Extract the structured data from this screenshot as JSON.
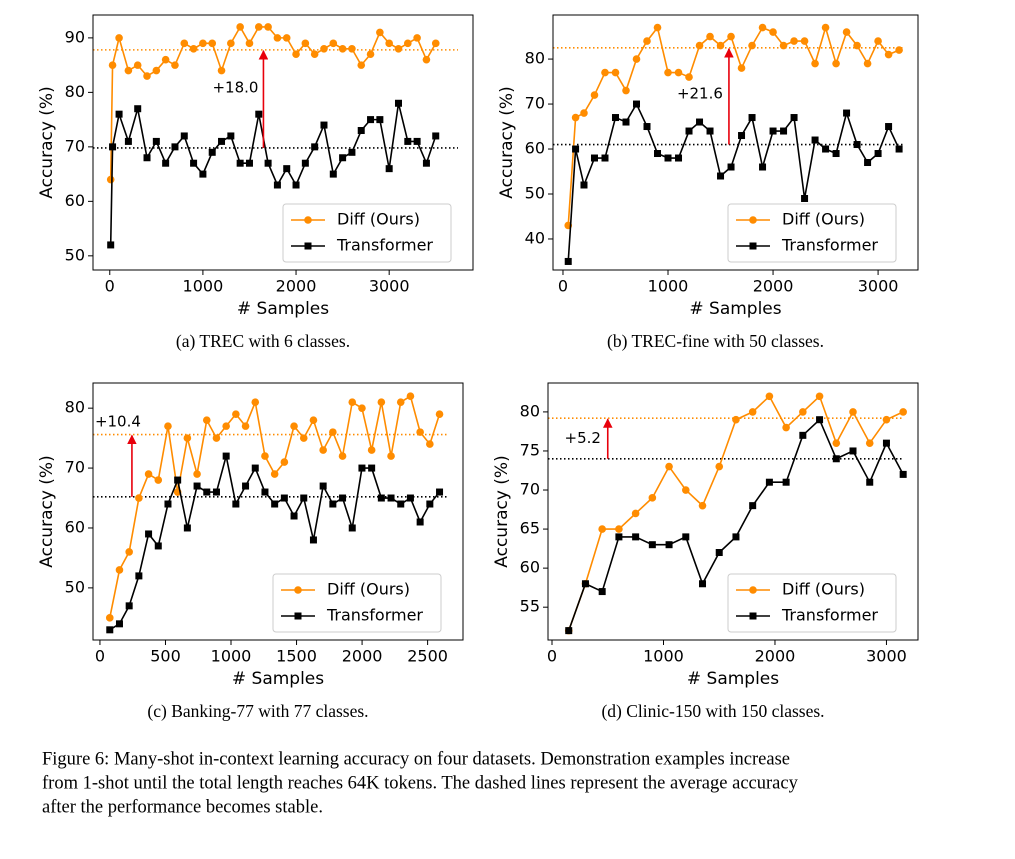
{
  "chart_data": [
    {
      "type": "line",
      "caption": "(a) TREC with 6 classes.",
      "xlabel": "# Samples",
      "ylabel": "Accuracy (%)",
      "legend": "lower right",
      "xlim": [
        -180,
        3900
      ],
      "xticks": [
        0,
        1000,
        2000,
        3000
      ],
      "ylim": [
        47.4,
        94.2
      ],
      "yticks": [
        50,
        60,
        70,
        80,
        90
      ],
      "x": [
        10,
        30,
        100,
        200,
        300,
        400,
        500,
        600,
        700,
        800,
        900,
        1000,
        1100,
        1200,
        1300,
        1400,
        1500,
        1600,
        1700,
        1800,
        1900,
        2000,
        2100,
        2200,
        2300,
        2400,
        2500,
        2600,
        2700,
        2800,
        2900,
        3000,
        3100,
        3200,
        3300,
        3400,
        3500
      ],
      "series": [
        {
          "name": "Diff (Ours)",
          "color": "#ff8c00",
          "marker": "circle",
          "average": 87.8,
          "values": [
            64,
            85,
            90,
            84,
            85,
            83,
            84,
            86,
            85,
            89,
            88,
            89,
            89,
            84,
            89,
            92,
            89,
            92,
            92,
            90,
            90,
            87,
            89,
            87,
            88,
            89,
            88,
            88,
            85,
            87,
            91,
            89,
            88,
            89,
            90,
            86,
            89
          ]
        },
        {
          "name": "Transformer",
          "color": "#000000",
          "marker": "square",
          "average": 69.8,
          "values": [
            52,
            70,
            76,
            71,
            77,
            68,
            71,
            67,
            70,
            72,
            67,
            65,
            69,
            71,
            72,
            67,
            67,
            76,
            67,
            63,
            66,
            63,
            67,
            70,
            74,
            65,
            68,
            69,
            73,
            75,
            75,
            66,
            78,
            71,
            71,
            67,
            72
          ]
        }
      ],
      "annotation": {
        "text": "+18.0",
        "x": 1650
      }
    },
    {
      "type": "line",
      "caption": "(b) TREC-fine with 50 classes.",
      "xlabel": "# Samples",
      "ylabel": "Accuracy (%)",
      "legend": "lower right",
      "xlim": [
        -95,
        3380
      ],
      "xticks": [
        0,
        1000,
        2000,
        3000
      ],
      "ylim": [
        33.1,
        89.8
      ],
      "yticks": [
        40,
        50,
        60,
        70,
        80
      ],
      "x": [
        50,
        120,
        200,
        300,
        400,
        500,
        600,
        700,
        800,
        900,
        1000,
        1100,
        1200,
        1300,
        1400,
        1500,
        1600,
        1700,
        1800,
        1900,
        2000,
        2100,
        2200,
        2300,
        2400,
        2500,
        2600,
        2700,
        2800,
        2900,
        3000,
        3100,
        3200
      ],
      "series": [
        {
          "name": "Diff (Ours)",
          "color": "#ff8c00",
          "marker": "circle",
          "average": 82.5,
          "values": [
            43,
            67,
            68,
            72,
            77,
            77,
            73,
            80,
            84,
            87,
            77,
            77,
            76,
            83,
            85,
            83,
            85,
            78,
            83,
            87,
            86,
            83,
            84,
            84,
            79,
            87,
            79,
            86,
            83,
            79,
            84,
            81,
            82
          ]
        },
        {
          "name": "Transformer",
          "color": "#000000",
          "marker": "square",
          "average": 61,
          "values": [
            35,
            60,
            52,
            58,
            58,
            67,
            66,
            70,
            65,
            59,
            58,
            58,
            64,
            66,
            64,
            54,
            56,
            63,
            67,
            56,
            64,
            64,
            67,
            49,
            62,
            60,
            59,
            68,
            61,
            57,
            59,
            65,
            60
          ]
        }
      ],
      "annotation": {
        "text": "+21.6",
        "x": 1580
      }
    },
    {
      "type": "line",
      "caption": "(c) Banking-77 with 77 classes.",
      "xlabel": "# Samples",
      "ylabel": "Accuracy (%)",
      "legend": "lower right",
      "xlim": [
        -53,
        2770
      ],
      "xticks": [
        0,
        500,
        1000,
        1500,
        2000,
        2500
      ],
      "ylim": [
        41.3,
        84.2
      ],
      "yticks": [
        50,
        60,
        70,
        80
      ],
      "x": [
        75,
        149,
        223,
        297,
        371,
        445,
        519,
        593,
        667,
        741,
        815,
        889,
        963,
        1037,
        1111,
        1185,
        1259,
        1333,
        1407,
        1481,
        1555,
        1629,
        1703,
        1777,
        1851,
        1925,
        1999,
        2073,
        2147,
        2221,
        2295,
        2369,
        2443,
        2517,
        2591
      ],
      "series": [
        {
          "name": "Diff (Ours)",
          "color": "#ff8c00",
          "marker": "circle",
          "average": 75.6,
          "values": [
            45,
            53,
            56,
            65,
            69,
            68,
            77,
            66,
            75,
            69,
            78,
            75,
            77,
            79,
            77,
            81,
            72,
            69,
            71,
            77,
            75,
            78,
            73,
            76,
            72,
            81,
            80,
            73,
            81,
            72,
            81,
            82,
            76,
            74,
            79
          ]
        },
        {
          "name": "Transformer",
          "color": "#000000",
          "marker": "square",
          "average": 65.2,
          "values": [
            43,
            44,
            47,
            52,
            59,
            57,
            64,
            68,
            60,
            67,
            66,
            66,
            72,
            64,
            67,
            70,
            66,
            64,
            65,
            62,
            65,
            58,
            67,
            64,
            65,
            60,
            70,
            70,
            65,
            65,
            64,
            65,
            61,
            64,
            66
          ]
        }
      ],
      "annotation": {
        "text": "+10.4",
        "x": 244
      }
    },
    {
      "type": "line",
      "caption": "(d) Clinic-150 with 150 classes.",
      "xlabel": "# Samples",
      "ylabel": "Accuracy (%)",
      "legend": "lower right",
      "xlim": [
        -36,
        3283
      ],
      "xticks": [
        0,
        1000,
        2000,
        3000
      ],
      "ylim": [
        50.8,
        83.7
      ],
      "yticks": [
        55,
        60,
        65,
        70,
        75,
        80
      ],
      "x": [
        150,
        300,
        450,
        600,
        750,
        900,
        1050,
        1200,
        1350,
        1500,
        1650,
        1800,
        1950,
        2100,
        2250,
        2400,
        2550,
        2700,
        2850,
        3000,
        3150
      ],
      "series": [
        {
          "name": "Diff (Ours)",
          "color": "#ff8c00",
          "marker": "circle",
          "average": 79.2,
          "values": [
            52,
            58,
            65,
            65,
            67,
            69,
            73,
            70,
            68,
            73,
            79,
            80,
            82,
            78,
            80,
            82,
            76,
            80,
            76,
            79,
            80
          ]
        },
        {
          "name": "Transformer",
          "color": "#000000",
          "marker": "square",
          "average": 74.0,
          "values": [
            52,
            58,
            57,
            64,
            64,
            63,
            63,
            64,
            58,
            62,
            64,
            68,
            71,
            71,
            77,
            79,
            74,
            75,
            71,
            76,
            72
          ]
        }
      ],
      "annotation": {
        "text": "+5.2",
        "x": 500
      }
    }
  ],
  "figure_caption": [
    "Figure 6: Many-shot in-context learning accuracy on four datasets. Demonstration examples increase",
    "from 1-shot until the total length reaches 64K tokens. The dashed lines represent the average accuracy",
    "after the performance becomes stable."
  ]
}
